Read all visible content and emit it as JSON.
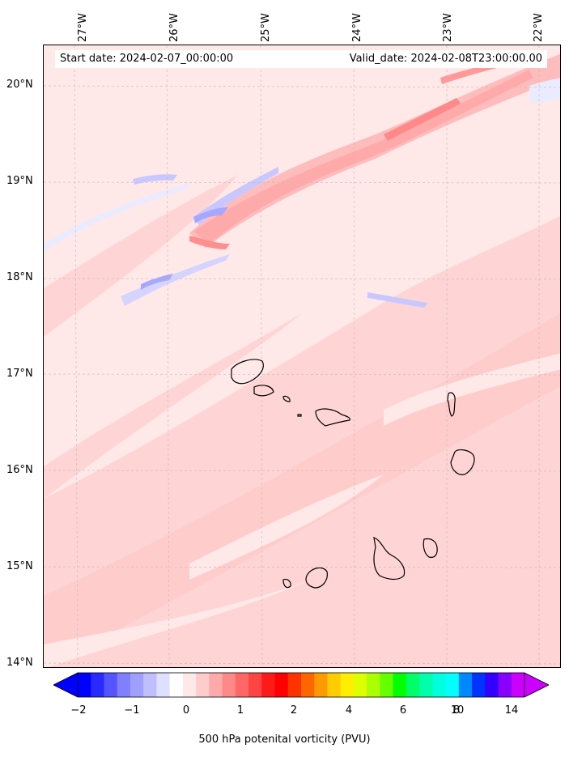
{
  "map": {
    "start_label": "Start date: 2024-02-07_00:00:00",
    "valid_label": "Valid_date: 2024-02-08T23:00:00.00",
    "lon_labels": [
      "27°W",
      "26°W",
      "25°W",
      "24°W",
      "23°W",
      "22°W"
    ],
    "lat_labels": [
      "20°N",
      "19°N",
      "18°N",
      "17°N",
      "16°N",
      "15°N",
      "14°N"
    ],
    "background_color": "#ffe8e8",
    "coastline_color": "#000000"
  },
  "colorbar": {
    "tick_labels": [
      "−2",
      "−1",
      "0",
      "1",
      "2",
      "4",
      "6",
      "8",
      "10",
      "14"
    ],
    "label": "500 hPa potenital vorticity (PVU)",
    "colors": [
      "#0000ff",
      "#2a2aff",
      "#5555ff",
      "#7f7fff",
      "#9f9fff",
      "#bfbfff",
      "#dfdfff",
      "#ffffff",
      "#ffe8e8",
      "#ffcccc",
      "#ffaaaa",
      "#ff8888",
      "#ff6666",
      "#ff4444",
      "#ff1a1a",
      "#ff0000",
      "#ff3300",
      "#ff6600",
      "#ff9900",
      "#ffcc00",
      "#ffee00",
      "#ddff00",
      "#aaff00",
      "#66ff00",
      "#00ff00",
      "#00ff66",
      "#00ffaa",
      "#00ffdd",
      "#00ffff",
      "#0088ff",
      "#0033ff",
      "#3300ff",
      "#8800ff",
      "#cc00ff"
    ],
    "extend_min_color": "#0000ff",
    "extend_max_color": "#cc00ff"
  }
}
